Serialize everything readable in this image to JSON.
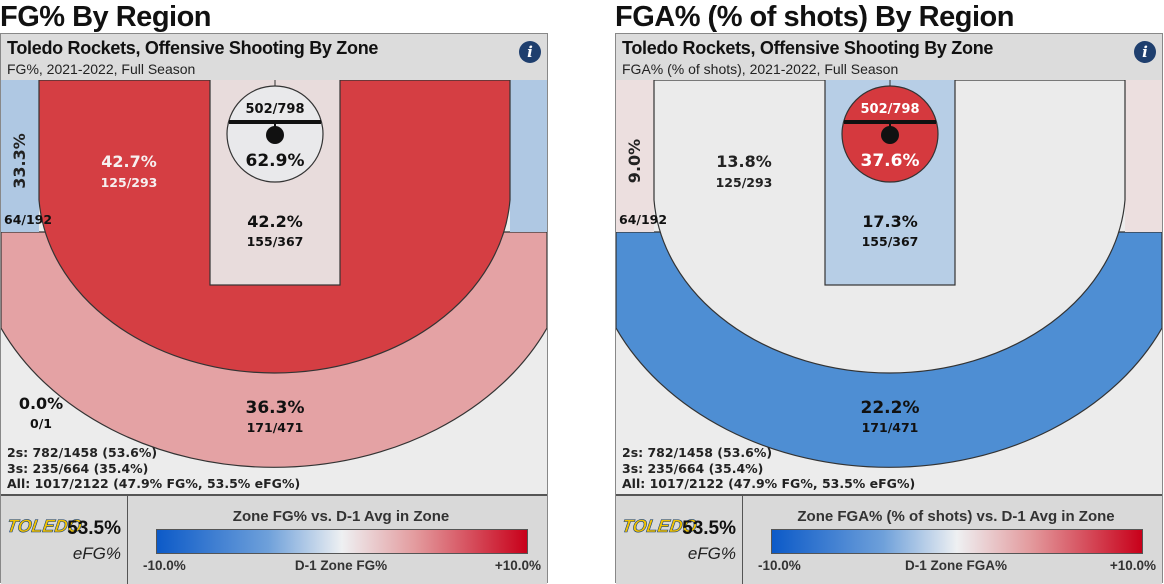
{
  "panels": [
    {
      "page_title": "FG% By Region",
      "title": "Toledo Rockets, Offensive Shooting By Zone",
      "subtitle": "FG%, 2021-2022, Full Season",
      "info_label": "i",
      "zones": {
        "rim": {
          "pct": "62.9%",
          "made": "502/798",
          "color": "#e9e9eb",
          "text_color": "#111111"
        },
        "paint": {
          "pct": "42.2%",
          "made": "155/367",
          "color": "#e8dcdc"
        },
        "midrange": {
          "pct": "42.7%",
          "made": "125/293",
          "color": "#d53e43",
          "text_color": "#f6f0f0"
        },
        "corner_left": {
          "pct": "33.3%",
          "made": "64/192",
          "color": "#afc8e3"
        },
        "corner_right": {
          "color": "#afc8e3"
        },
        "above_break_three": {
          "pct": "36.3%",
          "made": "171/471",
          "color": "#e4a2a4"
        },
        "deep": {
          "pct": "0.0%",
          "made": "0/1",
          "color": "#ececec"
        }
      },
      "summary": [
        "2s: 782/1458 (53.6%)",
        "3s: 235/664 (35.4%)",
        "All: 1017/2122 (47.9% FG%, 53.5% eFG%)"
      ],
      "logo_text": "TOLEDO",
      "efg_value": "53.5%",
      "efg_label": "eFG%",
      "legend": {
        "title": "Zone FG% vs. D-1 Avg in Zone",
        "min": "-10.0%",
        "mid": "D-1 Zone FG%",
        "max": "+10.0%"
      }
    },
    {
      "page_title": "FGA% (% of shots) By Region",
      "title": "Toledo Rockets, Offensive Shooting By Zone",
      "subtitle": "FGA% (% of shots), 2021-2022, Full Season",
      "info_label": "i",
      "zones": {
        "rim": {
          "pct": "37.6%",
          "made": "502/798",
          "color": "#d5393e",
          "text_color": "#ffffff"
        },
        "paint": {
          "pct": "17.3%",
          "made": "155/367",
          "color": "#b7cee6"
        },
        "midrange": {
          "pct": "13.8%",
          "made": "125/293",
          "color": "#ebebeb",
          "text_color": "#222222"
        },
        "corner_left": {
          "pct": "9.0%",
          "made": "64/192",
          "color": "#ecdfdf"
        },
        "corner_right": {
          "color": "#ecdfdf"
        },
        "above_break_three": {
          "pct": "22.2%",
          "made": "171/471",
          "color": "#4e8ed3"
        },
        "deep": {
          "color": "#ececec"
        }
      },
      "summary": [
        "2s: 782/1458 (53.6%)",
        "3s: 235/664 (35.4%)",
        "All: 1017/2122 (47.9% FG%, 53.5% eFG%)"
      ],
      "logo_text": "TOLEDO",
      "efg_value": "53.5%",
      "efg_label": "eFG%",
      "legend": {
        "title": "Zone FGA% (% of shots) vs. D-1 Avg in Zone",
        "min": "-10.0%",
        "mid": "D-1 Zone FGA%",
        "max": "+10.0%"
      }
    }
  ]
}
